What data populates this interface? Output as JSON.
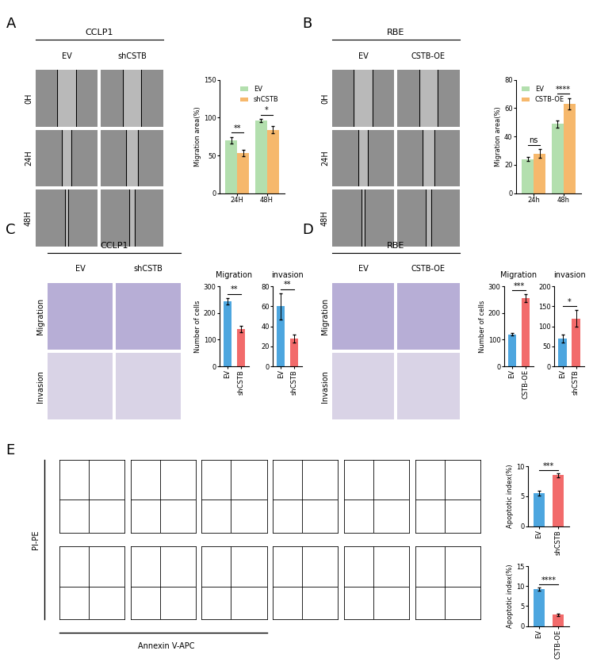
{
  "panels": [
    {
      "label": "A",
      "image_grid": {
        "title": "CCLP1",
        "columns": [
          "EV",
          "shCSTB"
        ],
        "rows": [
          "0H",
          "24H",
          "48H"
        ],
        "style": "wound"
      }
    },
    {
      "label": "B",
      "image_grid": {
        "title": "RBE",
        "columns": [
          "EV",
          "CSTB-OE"
        ],
        "rows": [
          "0H",
          "24H",
          "48H"
        ],
        "style": "wound"
      }
    },
    {
      "label": "C",
      "image_grid": {
        "title": "CCLP1",
        "columns": [
          "EV",
          "shCSTB"
        ],
        "rows": [
          "Migration",
          "Invasion"
        ],
        "style": "transwell"
      }
    },
    {
      "label": "D",
      "image_grid": {
        "title": "RBE",
        "columns": [
          "EV",
          "CSTB-OE"
        ],
        "rows": [
          "Migration",
          "Invasion"
        ],
        "style": "transwell"
      }
    },
    {
      "label": "E",
      "flow_grid": {
        "rows": 2,
        "columns": 6,
        "y_label": "PI-PE",
        "x_label": "Annexin V-APC"
      }
    }
  ],
  "chart_data": [
    {
      "type": "bar",
      "categories": [
        "24H",
        "48H"
      ],
      "ylabel": "Migration area(%)",
      "ylim": [
        0,
        150
      ],
      "yticks": [
        0,
        50,
        100,
        150
      ],
      "legend": "upper right",
      "series": [
        {
          "name": "EV",
          "color": "#b3dfae",
          "values": [
            70,
            96
          ],
          "errors": [
            4,
            2
          ]
        },
        {
          "name": "shCSTB",
          "color": "#f6b86c",
          "values": [
            53,
            84
          ],
          "errors": [
            4,
            5
          ]
        }
      ],
      "significance": [
        "**",
        "*"
      ]
    },
    {
      "type": "bar",
      "categories": [
        "24h",
        "48h"
      ],
      "ylabel": "Migration area(%)",
      "ylim": [
        0,
        80
      ],
      "yticks": [
        0,
        20,
        40,
        60,
        80
      ],
      "legend": "upper left",
      "series": [
        {
          "name": "EV",
          "color": "#b3dfae",
          "values": [
            24,
            49
          ],
          "errors": [
            1.5,
            2.5
          ]
        },
        {
          "name": "CSTB-OE",
          "color": "#f6b86c",
          "values": [
            28,
            63
          ],
          "errors": [
            3,
            4
          ]
        }
      ],
      "significance": [
        "ns",
        "****"
      ]
    },
    {
      "type": "bar",
      "title": "Migration",
      "categories": [
        "EV",
        "shCSTB"
      ],
      "values": [
        245,
        140
      ],
      "errors": [
        12,
        12
      ],
      "colors": [
        "#4da6df",
        "#f26b6b"
      ],
      "ylabel": "Number of cells",
      "ylim": [
        0,
        300
      ],
      "yticks": [
        0,
        100,
        200,
        300
      ],
      "significance": [
        "**"
      ]
    },
    {
      "type": "bar",
      "title": "invasion",
      "categories": [
        "EV",
        "shCSTB"
      ],
      "values": [
        60,
        28
      ],
      "errors": [
        13,
        4
      ],
      "colors": [
        "#4da6df",
        "#f26b6b"
      ],
      "ylim": [
        0,
        80
      ],
      "yticks": [
        0,
        20,
        40,
        60,
        80
      ],
      "significance": [
        "**"
      ]
    },
    {
      "type": "bar",
      "title": "Migration",
      "categories": [
        "EV",
        "CSTB-OE"
      ],
      "values": [
        120,
        255
      ],
      "errors": [
        5,
        15
      ],
      "colors": [
        "#4da6df",
        "#f26b6b"
      ],
      "ylabel": "Number of cells",
      "ylim": [
        0,
        300
      ],
      "yticks": [
        0,
        100,
        200,
        300
      ],
      "significance": [
        "***"
      ]
    },
    {
      "type": "bar",
      "title": "invasion",
      "categories": [
        "EV",
        "shCSTB"
      ],
      "values": [
        70,
        120
      ],
      "errors": [
        10,
        20
      ],
      "colors": [
        "#4da6df",
        "#f26b6b"
      ],
      "ylim": [
        0,
        200
      ],
      "yticks": [
        0,
        50,
        100,
        150,
        200
      ],
      "significance": [
        "*"
      ]
    },
    {
      "type": "bar",
      "categories": [
        "EV",
        "shCSTB"
      ],
      "values": [
        5.5,
        8.5
      ],
      "errors": [
        0.4,
        0.3
      ],
      "colors": [
        "#4da6df",
        "#f26b6b"
      ],
      "ylabel": "Apoptotic index(%)",
      "ylim": [
        0,
        10
      ],
      "yticks": [
        0,
        5,
        10
      ],
      "significance": [
        "***"
      ]
    },
    {
      "type": "bar",
      "categories": [
        "EV",
        "CSTB-OE"
      ],
      "values": [
        9.3,
        2.8
      ],
      "errors": [
        0.4,
        0.3
      ],
      "colors": [
        "#4da6df",
        "#f26b6b"
      ],
      "ylabel": "Apoptotic index(%)",
      "ylim": [
        0,
        15
      ],
      "yticks": [
        0,
        5,
        10,
        15
      ],
      "significance": [
        "****"
      ]
    }
  ]
}
